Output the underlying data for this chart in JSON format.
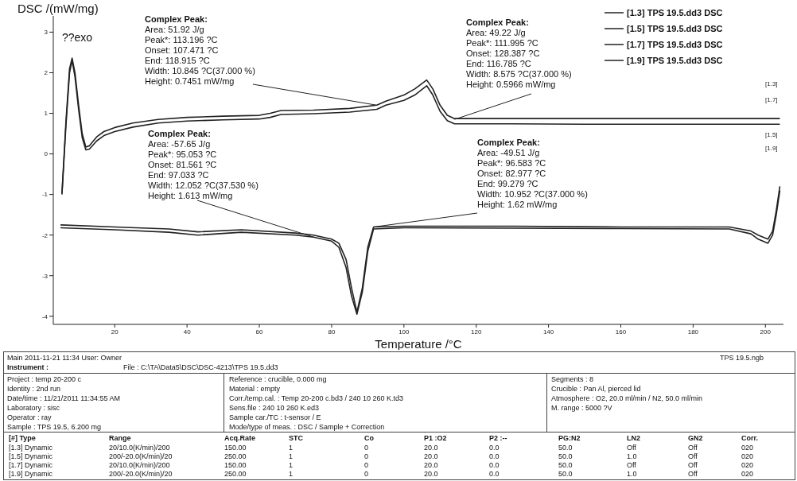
{
  "chart_data": {
    "type": "line",
    "xlabel": "Temperature /°C",
    "ylabel": "DSC /(mW/mg)",
    "xlim": [
      3,
      205
    ],
    "ylim": [
      -4.2,
      3.4
    ],
    "xticks": [
      20,
      40,
      60,
      80,
      100,
      120,
      140,
      160,
      180,
      200
    ],
    "yticks": [
      -4,
      -3,
      -2,
      -1,
      0,
      1,
      2,
      3
    ],
    "legend": "top right",
    "grid": false,
    "marker": "none",
    "line_style": "solid",
    "series": [
      {
        "name": "[1.3] TPS 19.5.dd3 DSC",
        "color": "#222222",
        "x": [
          5.4,
          6.5,
          7.5,
          8.2,
          9,
          10,
          11,
          12,
          13,
          15,
          17,
          20,
          25,
          32,
          40,
          50,
          60,
          63,
          66,
          75,
          85,
          92.5,
          95,
          100,
          103,
          106.3,
          108,
          110,
          112,
          114,
          130,
          150,
          170,
          190,
          204
        ],
        "values": [
          -0.97,
          0.8,
          2.1,
          2.36,
          2.0,
          1.2,
          0.5,
          0.17,
          0.2,
          0.42,
          0.55,
          0.65,
          0.76,
          0.85,
          0.9,
          0.93,
          0.95,
          1.0,
          1.07,
          1.08,
          1.12,
          1.2,
          1.3,
          1.45,
          1.6,
          1.82,
          1.6,
          1.2,
          0.95,
          0.87,
          0.87,
          0.87,
          0.87,
          0.87,
          0.87
        ]
      },
      {
        "name": "[1.5] TPS 19.5.dd3 DSC",
        "color": "#222222",
        "x": [
          5,
          20,
          35,
          43,
          55,
          70,
          75,
          80,
          82,
          84,
          85.5,
          87,
          88.5,
          90,
          91.6,
          100,
          130,
          160,
          190,
          196,
          198,
          200.7,
          202,
          203,
          204
        ],
        "values": [
          -1.75,
          -1.8,
          -1.85,
          -1.92,
          -1.87,
          -1.95,
          -2.0,
          -2.1,
          -2.2,
          -2.6,
          -3.3,
          -3.9,
          -3.3,
          -2.3,
          -1.8,
          -1.78,
          -1.78,
          -1.8,
          -1.8,
          -1.9,
          -2.0,
          -2.1,
          -1.9,
          -1.4,
          -0.8
        ]
      },
      {
        "name": "[1.7] TPS 19.5.dd3 DSC",
        "color": "#222222",
        "x": [
          5.4,
          6.5,
          7.5,
          8.2,
          9,
          10,
          11,
          12,
          13,
          15,
          17,
          20,
          25,
          32,
          40,
          50,
          60,
          63,
          66,
          75,
          85,
          92.5,
          95,
          100,
          103,
          106.3,
          108,
          110,
          112,
          114,
          130,
          150,
          170,
          190,
          204
        ],
        "values": [
          -1.0,
          0.7,
          2.0,
          2.3,
          1.9,
          1.1,
          0.4,
          0.1,
          0.12,
          0.32,
          0.45,
          0.55,
          0.66,
          0.76,
          0.81,
          0.84,
          0.86,
          0.9,
          0.97,
          0.99,
          1.03,
          1.1,
          1.2,
          1.32,
          1.45,
          1.68,
          1.45,
          1.05,
          0.82,
          0.74,
          0.74,
          0.73,
          0.73,
          0.73,
          0.73
        ]
      },
      {
        "name": "[1.9] TPS 19.5.dd3 DSC",
        "color": "#222222",
        "x": [
          5,
          20,
          35,
          43,
          55,
          70,
          75,
          80,
          82,
          84,
          85.5,
          87,
          88.5,
          90,
          91.6,
          100,
          130,
          160,
          190,
          196,
          198,
          200.7,
          202,
          203,
          204
        ],
        "values": [
          -1.82,
          -1.87,
          -1.93,
          -2.0,
          -1.93,
          -2.0,
          -2.05,
          -2.15,
          -2.3,
          -2.8,
          -3.5,
          -3.95,
          -3.4,
          -2.4,
          -1.85,
          -1.82,
          -1.83,
          -1.84,
          -1.85,
          -1.97,
          -2.1,
          -2.2,
          -2.0,
          -1.5,
          -0.9
        ]
      }
    ],
    "annotations": [
      "??exo",
      {
        "text": "Complex Peak:\nArea: 51.92 J/g\nPeak*: 113.196 ?C\nOnset: 107.471 ?C\nEnd: 118.915 ?C\nWidth: 10.845 ?C(37.000 %)\nHeight: 0.7451 mW/mg",
        "x": 92.5,
        "y": 1.2
      },
      {
        "text": "Complex Peak:\nArea: 49.22 J/g\nPeak*: 111.995 ?C\nOnset: 128.387 ?C\nEnd: 116.785 ?C\nWidth: 8.575 ?C(37.000 %)\nHeight: 0.5966 mW/mg",
        "x": 114,
        "y": 0.85
      },
      {
        "text": "Complex Peak:\nArea: -57.65 J/g\nPeak*: 95.053 ?C\nOnset: 81.561 ?C\nEnd: 97.033 ?C\nWidth: 12.052 ?C(37.530 %)\nHeight: 1.613 mW/mg",
        "x": 75,
        "y": -2.05
      },
      {
        "text": "Complex Peak:\nArea: -49.51 J/g\nPeak*: 96.583 ?C\nOnset: 82.977 ?C\nEnd: 99.279 ?C\nWidth: 10.952 ?C(37.000 %)\nHeight: 1.62 mW/mg",
        "x": 91.6,
        "y": -1.8
      },
      "[1.3]",
      "[1.7]",
      "[1.5]",
      "[1.9]",
      "Main 2011-11-21 11:34 User: Owner",
      "TPS 19.5.ngb",
      "Instrument :",
      "File : C:\\TA\\Data5\\DSC\\DSC-4213\\TPS 19.5.dd3",
      "Project : temp 20-200 c",
      "Identity : 2nd run",
      "Date/time : 11/21/2011 11:34:55 AM",
      "Laboratory : sisc",
      "Operator : ray",
      "Sample : TPS 19.5, 6.200 mg",
      "Reference : crucible, 0.000 mg",
      "Material : empty",
      "Corr./temp.cal. : Temp 20-200 c.bd3 / 240 10 260 K.td3",
      "Sens.file : 240 10 260 K.ed3",
      "Sample car./TC : t-sensor / E",
      "Mode/type of meas. : DSC / Sample + Correction",
      "Segments : 8",
      "Crucible : Pan Al, pierced lid",
      "Atmosphere : O2, 20.0 ml/min / N2, 50.0 ml/min",
      "M. range : 5000 ?V",
      "[#] Type",
      "Range",
      "Acq.Rate",
      "STC",
      "Co",
      "P1 :O2",
      "P2 :--",
      "PG:N2",
      "LN2",
      "GN2",
      "Corr.",
      "[1.3] Dynamic",
      "20/10.0(K/min)/200",
      "150.00",
      "1",
      "0",
      "20.0",
      "0.0",
      "50.0",
      "Off",
      "Off",
      "020",
      "[1.5] Dynamic",
      "200/-20.0(K/min)/20",
      "250.00",
      "1",
      "0",
      "20.0",
      "0.0",
      "50.0",
      "1.0",
      "Off",
      "020",
      "[1.7] Dynamic",
      "20/10.0(K/min)/200",
      "150.00",
      "1",
      "0",
      "20.0",
      "0.0",
      "50.0",
      "Off",
      "Off",
      "020",
      "[1.9] Dynamic",
      "200/-20.0(K/min)/20",
      "250.00",
      "1",
      "0",
      "20.0",
      "0.0",
      "50.0",
      "1.0",
      "Off",
      "020"
    ]
  }
}
